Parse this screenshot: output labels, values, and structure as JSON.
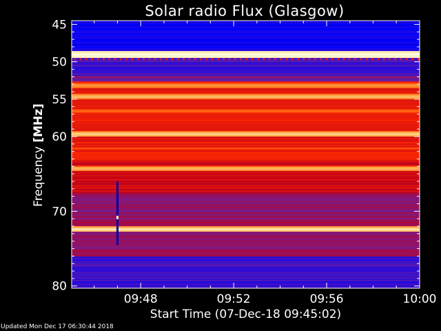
{
  "chart_data": {
    "type": "heatmap",
    "title": "Solar radio Flux (Glasgow)",
    "xlabel": "Start Time (07-Dec-18 09:45:02)",
    "ylabel_text": "Frequency ",
    "ylabel_unit": "[MHz]",
    "x_ticks": [
      "09:48",
      "09:52",
      "09:56",
      "10:00"
    ],
    "x_tick_minutes": [
      48,
      52,
      56,
      60
    ],
    "x_range_minutes": [
      45.03,
      60
    ],
    "y_ticks": [
      45,
      50,
      55,
      60,
      70,
      80
    ],
    "y_range": [
      44.5,
      80.3
    ],
    "colormap": [
      "#000080",
      "#0000ff",
      "#6f1f9a",
      "#c0001a",
      "#ff2a00",
      "#ff7a1a",
      "#ffd080",
      "#ffffe0"
    ],
    "bands": [
      {
        "from": 44.5,
        "to": 48.5,
        "level": 0.15
      },
      {
        "from": 48.5,
        "to": 49.3,
        "level": 0.95
      },
      {
        "from": 49.3,
        "to": 51.7,
        "level": 0.22
      },
      {
        "from": 51.7,
        "to": 52.6,
        "level": 0.3
      },
      {
        "from": 52.6,
        "to": 63.5,
        "level": 0.52
      },
      {
        "from": 63.5,
        "to": 67.5,
        "level": 0.46
      },
      {
        "from": 67.5,
        "to": 76.0,
        "level": 0.34
      },
      {
        "from": 76.0,
        "to": 80.3,
        "level": 0.22
      }
    ],
    "bright_lines": [
      {
        "freq": 48.9,
        "level": 0.98
      },
      {
        "freq": 53.1,
        "level": 0.82
      },
      {
        "freq": 54.6,
        "level": 0.88
      },
      {
        "freq": 59.6,
        "level": 0.9
      },
      {
        "freq": 64.2,
        "level": 0.86
      },
      {
        "freq": 72.3,
        "level": 0.95
      },
      {
        "freq": 56.5,
        "level": 0.7
      },
      {
        "freq": 61.5,
        "level": 0.66
      }
    ],
    "spike": {
      "time_minutes": 47.0,
      "freq_range": [
        66.0,
        74.5
      ],
      "level": 0.05
    }
  },
  "footer_text": "Updated Mon Dec 17 06:30:44 2018"
}
